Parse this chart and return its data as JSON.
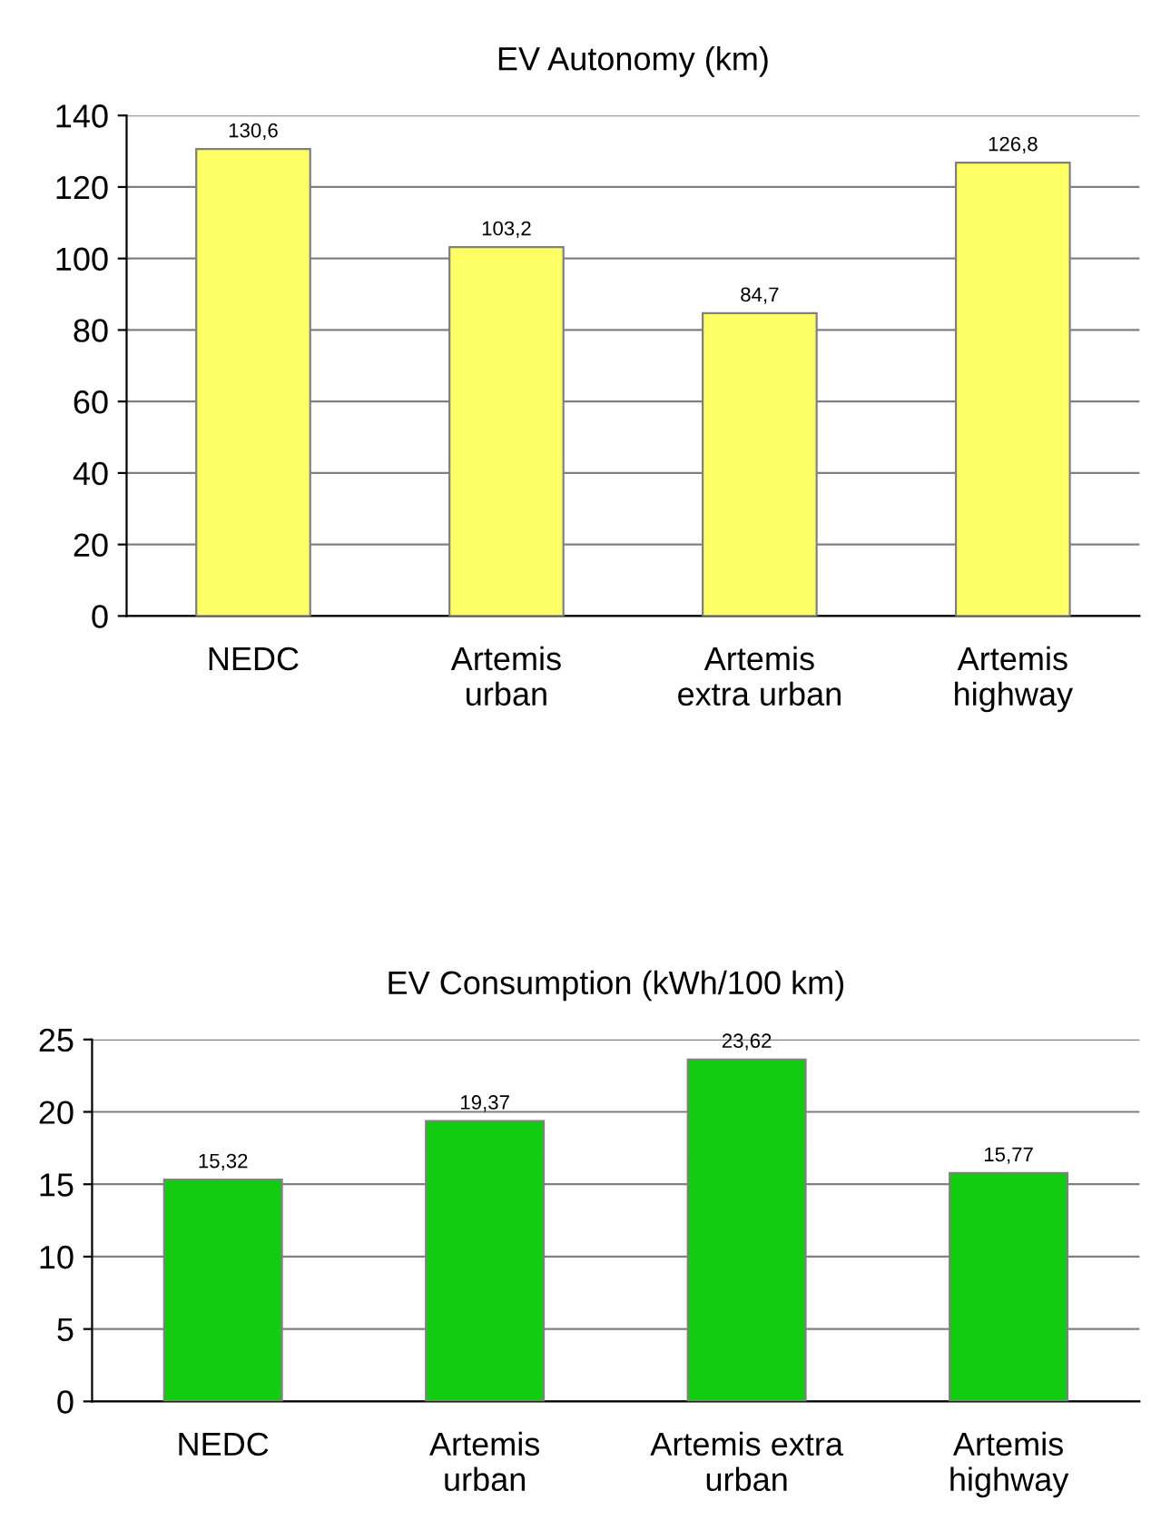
{
  "chart_data": [
    {
      "type": "bar",
      "title": "EV Autonomy (km)",
      "categories": [
        "NEDC",
        "Artemis\nurban",
        "Artemis\nextra urban",
        "Artemis\nhighway"
      ],
      "series": [
        {
          "color": "#ffff66",
          "values": [
            130.6,
            103.2,
            84.7,
            126.8
          ],
          "value_labels": [
            "130,6",
            "103,2",
            "84,7",
            "126,8"
          ]
        }
      ],
      "ylim": [
        0,
        140
      ],
      "yticks": [
        0,
        20,
        40,
        60,
        80,
        100,
        120,
        140
      ],
      "grid": "y",
      "legend": false
    },
    {
      "type": "bar",
      "title": "EV Consumption (kWh/100 km)",
      "categories": [
        "NEDC",
        "Artemis\nurban",
        "Artemis extra\nurban",
        "Artemis\nhighway"
      ],
      "series": [
        {
          "color": "#11cc11",
          "values": [
            15.32,
            19.37,
            23.62,
            15.77
          ],
          "value_labels": [
            "15,32",
            "19,37",
            "23,62",
            "15,77"
          ]
        }
      ],
      "ylim": [
        0,
        25
      ],
      "yticks": [
        0,
        5,
        10,
        15,
        20,
        25
      ],
      "grid": "y",
      "legend": false
    }
  ]
}
